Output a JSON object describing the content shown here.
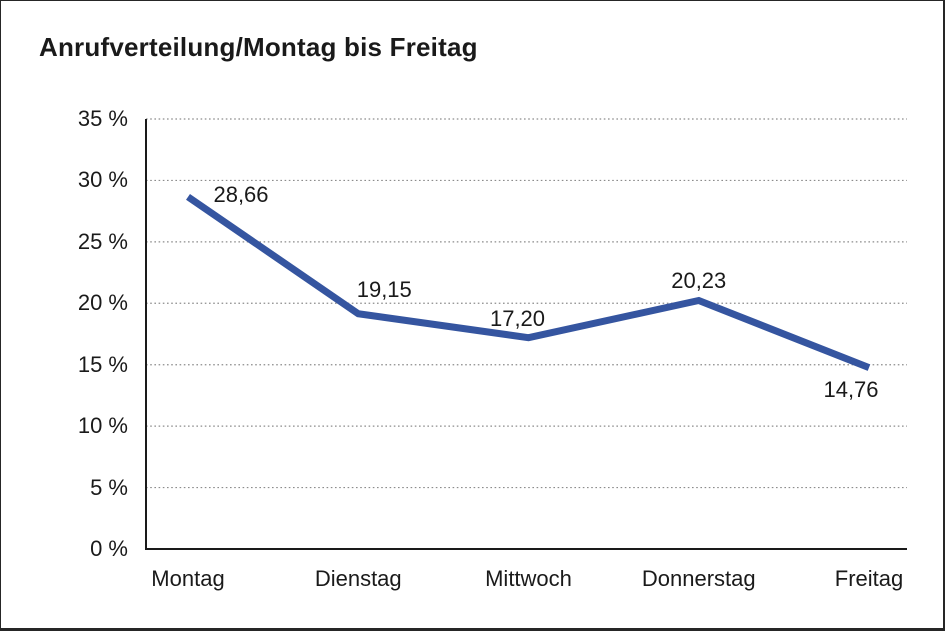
{
  "header": {
    "title": "Anrufverteilung/Montag bis Freitag"
  },
  "chart_data": {
    "type": "line",
    "title": "Anrufverteilung/Montag bis Freitag",
    "categories": [
      "Montag",
      "Dienstag",
      "Mittwoch",
      "Donnerstag",
      "Freitag"
    ],
    "values": [
      28.66,
      19.15,
      17.2,
      20.23,
      14.76
    ],
    "data_labels": [
      "28,66",
      "19,15",
      "17,20",
      "20,23",
      "14,76"
    ],
    "xlabel": "",
    "ylabel": "",
    "ylim": [
      0,
      35
    ],
    "ytick_step": 5,
    "ytick_values": [
      35,
      30,
      25,
      20,
      15,
      10,
      5,
      0
    ],
    "ytick_labels": [
      "35 %",
      "30 %",
      "25 %",
      "20 %",
      "15 %",
      "10 %",
      "5 %",
      "0 %"
    ],
    "grid": "horizontal-dotted",
    "legend_position": "none",
    "colors": {
      "line": "#3555A0",
      "axis": "#1a1a1a",
      "gridline": "#8c8c8c",
      "text": "#1a1a1a",
      "background": "#ffffff"
    }
  }
}
